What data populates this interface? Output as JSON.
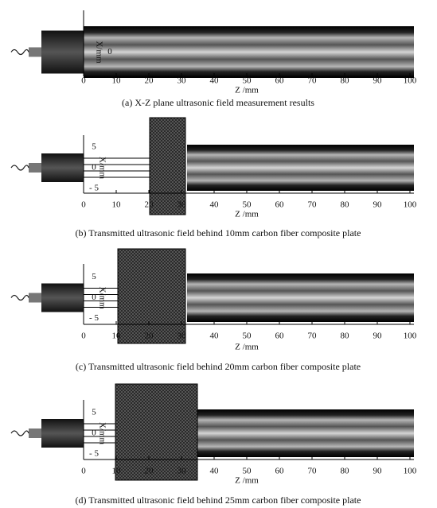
{
  "panels": [
    {
      "caption": "(a) X-Z plane ultrasonic field measurement results",
      "x_label": "Z /mm",
      "y_label": "X/mm",
      "x_ticks": [
        "0",
        "10",
        "20",
        "30",
        "40",
        "50",
        "60",
        "70",
        "80",
        "90",
        "100"
      ],
      "y_ticks": [
        "0"
      ]
    },
    {
      "caption": "(b) Transmitted ultrasonic field behind 10mm carbon fiber composite plate",
      "x_label": "Z /mm",
      "y_label": "X/mm",
      "x_ticks": [
        "0",
        "10",
        "20",
        "30",
        "40",
        "50",
        "60",
        "70",
        "80",
        "90",
        "100"
      ],
      "y_ticks": [
        "5",
        "0",
        "- 5"
      ]
    },
    {
      "caption": "(c) Transmitted ultrasonic field behind 20mm carbon fiber composite plate",
      "x_label": "Z /mm",
      "y_label": "X/mm",
      "x_ticks": [
        "0",
        "10",
        "20",
        "30",
        "40",
        "50",
        "60",
        "70",
        "80",
        "90",
        "100"
      ],
      "y_ticks": [
        "5",
        "0",
        "- 5"
      ]
    },
    {
      "caption": "(d) Transmitted ultrasonic field behind 25mm carbon fiber composite plate",
      "x_label": "Z /mm",
      "y_label": "X/mm",
      "x_ticks": [
        "0",
        "10",
        "20",
        "30",
        "40",
        "50",
        "60",
        "70",
        "80",
        "90",
        "100"
      ],
      "y_ticks": [
        "5",
        "0",
        "- 5"
      ]
    }
  ]
}
